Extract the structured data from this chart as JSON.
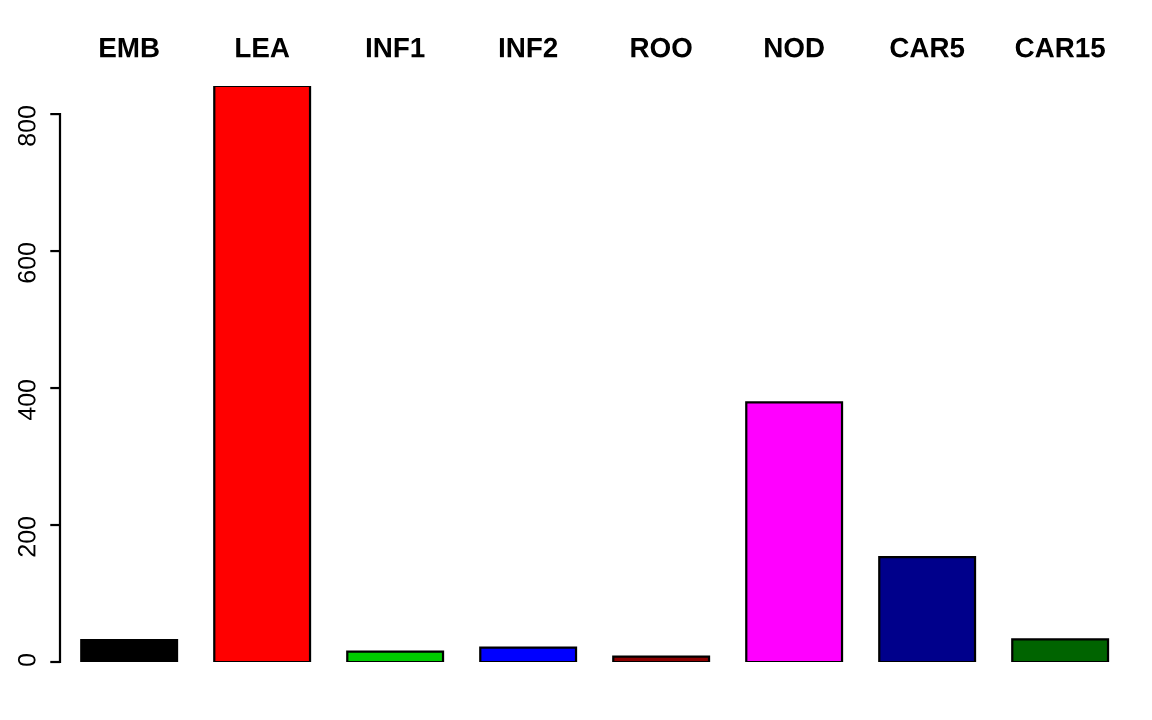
{
  "chart_data": {
    "type": "bar",
    "categories": [
      "EMB",
      "LEA",
      "INF1",
      "INF2",
      "ROO",
      "NOD",
      "CAR5",
      "CAR15"
    ],
    "values": [
      32,
      841,
      15,
      21,
      8,
      379,
      153,
      33
    ],
    "colors": [
      "#000000",
      "#ff0000",
      "#00cd00",
      "#0000ff",
      "#8b0000",
      "#ff00ff",
      "#00008b",
      "#006400"
    ],
    "ylim": [
      0,
      841
    ],
    "yticks": [
      0,
      200,
      400,
      600,
      800
    ],
    "grid": false,
    "legend": false
  }
}
